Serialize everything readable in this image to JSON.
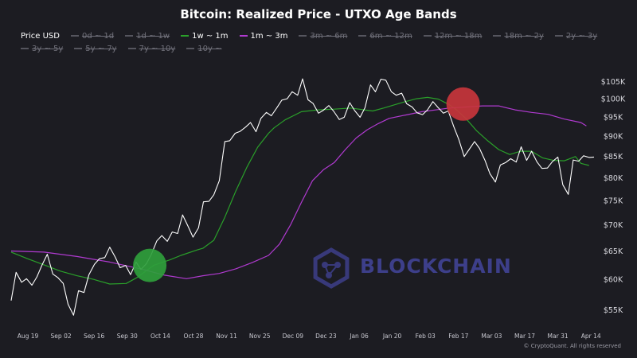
{
  "chart_data": {
    "type": "line",
    "title": "Bitcoin: Realized Price - UTXO Age Bands",
    "legend": [
      {
        "name": "Price USD",
        "color": "#ffffff",
        "visible": true
      },
      {
        "name": "0d ~ 1d",
        "color": "#7a7a7a",
        "visible": false
      },
      {
        "name": "1d ~ 1w",
        "color": "#7a7a7a",
        "visible": false
      },
      {
        "name": "1w ~ 1m",
        "color": "#2aa02a",
        "visible": true
      },
      {
        "name": "1m ~ 3m",
        "color": "#b03ad0",
        "visible": true
      },
      {
        "name": "3m ~ 6m",
        "color": "#7a7a7a",
        "visible": false
      },
      {
        "name": "6m ~ 12m",
        "color": "#7a7a7a",
        "visible": false
      },
      {
        "name": "12m ~ 18m",
        "color": "#7a7a7a",
        "visible": false
      },
      {
        "name": "18m ~ 2y",
        "color": "#7a7a7a",
        "visible": false
      },
      {
        "name": "2y ~ 3y",
        "color": "#7a7a7a",
        "visible": false
      },
      {
        "name": "3y ~ 5y",
        "color": "#7a7a7a",
        "visible": false
      },
      {
        "name": "5y ~ 7y",
        "color": "#7a7a7a",
        "visible": false
      },
      {
        "name": "7y ~ 10y",
        "color": "#7a7a7a",
        "visible": false
      },
      {
        "name": "10y ~",
        "color": "#7a7a7a",
        "visible": false
      }
    ],
    "x_ticks": [
      "Aug 19",
      "Sep 02",
      "Sep 16",
      "Sep 30",
      "Oct 14",
      "Oct 28",
      "Nov 11",
      "Nov 25",
      "Dec 09",
      "Dec 23",
      "Jan 06",
      "Jan 20",
      "Feb 03",
      "Feb 17",
      "Mar 03",
      "Mar 17",
      "Mar 31",
      "Apr 14"
    ],
    "y_ticks": [
      "$55K",
      "$60K",
      "$65K",
      "$70K",
      "$75K",
      "$80K",
      "$85K",
      "$90K",
      "$95K",
      "$100K",
      "$105K"
    ],
    "y_log_range": [
      53500,
      107500
    ],
    "series": [
      {
        "name": "Price USD",
        "color": "#ffffff",
        "values": [
          [
            0.0,
            56500
          ],
          [
            0.9,
            61200
          ],
          [
            1.9,
            59500
          ],
          [
            2.8,
            60100
          ],
          [
            3.8,
            59000
          ],
          [
            4.7,
            60400
          ],
          [
            5.7,
            62600
          ],
          [
            6.6,
            64400
          ],
          [
            7.6,
            60900
          ],
          [
            8.5,
            60300
          ],
          [
            9.5,
            59300
          ],
          [
            10.4,
            55900
          ],
          [
            11.4,
            54200
          ],
          [
            12.3,
            58100
          ],
          [
            13.3,
            57800
          ],
          [
            14.2,
            60800
          ],
          [
            15.2,
            62600
          ],
          [
            16.1,
            63600
          ],
          [
            17.1,
            63800
          ],
          [
            18.0,
            65700
          ],
          [
            19.0,
            63900
          ],
          [
            19.9,
            62000
          ],
          [
            20.9,
            62400
          ],
          [
            21.8,
            60800
          ],
          [
            22.8,
            63000
          ],
          [
            23.7,
            61700
          ],
          [
            24.7,
            62700
          ],
          [
            25.6,
            64400
          ],
          [
            26.6,
            66900
          ],
          [
            27.5,
            67900
          ],
          [
            28.5,
            66800
          ],
          [
            29.4,
            68600
          ],
          [
            30.4,
            68300
          ],
          [
            31.3,
            72000
          ],
          [
            32.3,
            69700
          ],
          [
            33.2,
            67600
          ],
          [
            34.2,
            69400
          ],
          [
            35.1,
            74700
          ],
          [
            36.1,
            74800
          ],
          [
            37.0,
            76200
          ],
          [
            38.0,
            79300
          ],
          [
            39.0,
            88600
          ],
          [
            39.9,
            88800
          ],
          [
            40.9,
            90700
          ],
          [
            41.8,
            91200
          ],
          [
            42.8,
            92300
          ],
          [
            43.7,
            93500
          ],
          [
            44.7,
            91100
          ],
          [
            45.6,
            94600
          ],
          [
            46.6,
            96200
          ],
          [
            47.5,
            95300
          ],
          [
            48.5,
            97500
          ],
          [
            49.4,
            99600
          ],
          [
            50.4,
            100000
          ],
          [
            51.3,
            102000
          ],
          [
            52.3,
            101000
          ],
          [
            53.2,
            105800
          ],
          [
            54.2,
            99700
          ],
          [
            55.1,
            98700
          ],
          [
            56.1,
            96000
          ],
          [
            57.0,
            96800
          ],
          [
            58.0,
            98100
          ],
          [
            58.9,
            96500
          ],
          [
            59.9,
            94300
          ],
          [
            60.8,
            94900
          ],
          [
            61.8,
            98900
          ],
          [
            62.7,
            96700
          ],
          [
            63.7,
            94900
          ],
          [
            64.6,
            97500
          ],
          [
            65.6,
            104000
          ],
          [
            66.5,
            102000
          ],
          [
            67.5,
            105700
          ],
          [
            68.4,
            105400
          ],
          [
            69.4,
            102000
          ],
          [
            70.3,
            101000
          ],
          [
            71.3,
            101600
          ],
          [
            72.2,
            98600
          ],
          [
            73.2,
            97700
          ],
          [
            74.1,
            96100
          ],
          [
            75.1,
            95600
          ],
          [
            76.0,
            96900
          ],
          [
            77.0,
            99200
          ],
          [
            77.9,
            97600
          ],
          [
            78.9,
            96000
          ],
          [
            79.8,
            96600
          ],
          [
            80.8,
            92400
          ],
          [
            81.7,
            89200
          ],
          [
            82.7,
            84900
          ],
          [
            83.6,
            86600
          ],
          [
            84.6,
            88600
          ],
          [
            85.5,
            86900
          ],
          [
            86.5,
            84000
          ],
          [
            87.4,
            80900
          ],
          [
            88.4,
            79000
          ],
          [
            89.3,
            82900
          ],
          [
            90.3,
            83500
          ],
          [
            91.2,
            84400
          ],
          [
            92.2,
            83600
          ],
          [
            93.1,
            87300
          ],
          [
            94.1,
            84000
          ],
          [
            95.0,
            86200
          ],
          [
            96.0,
            83600
          ],
          [
            96.9,
            82100
          ],
          [
            97.9,
            82200
          ],
          [
            98.8,
            83700
          ],
          [
            99.8,
            84800
          ],
          [
            100.7,
            78400
          ],
          [
            101.7,
            76300
          ],
          [
            102.6,
            84100
          ],
          [
            103.6,
            83800
          ],
          [
            104.5,
            85100
          ],
          [
            105.5,
            84700
          ],
          [
            106.4,
            84800
          ]
        ]
      },
      {
        "name": "1w ~ 1m",
        "color": "#2aa02a",
        "values": [
          [
            0.0,
            64800
          ],
          [
            3.0,
            63600
          ],
          [
            6.0,
            62500
          ],
          [
            9.0,
            61400
          ],
          [
            12.0,
            60600
          ],
          [
            15.0,
            60000
          ],
          [
            18.0,
            59200
          ],
          [
            21.0,
            59300
          ],
          [
            23.0,
            60300
          ],
          [
            26.0,
            62400
          ],
          [
            29.0,
            63400
          ],
          [
            31.0,
            64200
          ],
          [
            34.0,
            65200
          ],
          [
            35.0,
            65500
          ],
          [
            37.0,
            67000
          ],
          [
            39.0,
            71500
          ],
          [
            41.0,
            77000
          ],
          [
            43.0,
            82300
          ],
          [
            45.0,
            87200
          ],
          [
            47.0,
            90700
          ],
          [
            48.0,
            92100
          ],
          [
            50.0,
            94200
          ],
          [
            53.0,
            96400
          ],
          [
            56.0,
            96900
          ],
          [
            59.0,
            97100
          ],
          [
            62.0,
            97400
          ],
          [
            65.0,
            96800
          ],
          [
            66.0,
            96600
          ],
          [
            68.0,
            97400
          ],
          [
            70.0,
            98300
          ],
          [
            72.0,
            99200
          ],
          [
            74.0,
            100000
          ],
          [
            76.0,
            100400
          ],
          [
            78.0,
            99900
          ],
          [
            80.0,
            98300
          ],
          [
            81.0,
            97300
          ],
          [
            83.0,
            94600
          ],
          [
            85.0,
            91300
          ],
          [
            87.0,
            88800
          ],
          [
            89.0,
            86600
          ],
          [
            91.0,
            85400
          ],
          [
            93.0,
            86200
          ],
          [
            95.0,
            86200
          ],
          [
            97.0,
            84600
          ],
          [
            99.0,
            84000
          ],
          [
            101.0,
            83900
          ],
          [
            103.0,
            84900
          ],
          [
            104.0,
            83300
          ],
          [
            105.5,
            82800
          ]
        ]
      },
      {
        "name": "1m ~ 3m",
        "color": "#b03ad0",
        "values": [
          [
            0.0,
            65000
          ],
          [
            6.0,
            64800
          ],
          [
            12.0,
            64000
          ],
          [
            18.0,
            63000
          ],
          [
            24.0,
            61700
          ],
          [
            28.0,
            60700
          ],
          [
            32.0,
            60100
          ],
          [
            35.0,
            60600
          ],
          [
            38.0,
            61000
          ],
          [
            41.0,
            61800
          ],
          [
            44.0,
            62900
          ],
          [
            47.0,
            64200
          ],
          [
            49.0,
            66300
          ],
          [
            51.0,
            70000
          ],
          [
            53.0,
            74600
          ],
          [
            55.0,
            79300
          ],
          [
            57.0,
            81800
          ],
          [
            59.0,
            83500
          ],
          [
            61.0,
            86600
          ],
          [
            63.0,
            89500
          ],
          [
            65.0,
            91600
          ],
          [
            67.0,
            93200
          ],
          [
            69.0,
            94600
          ],
          [
            72.0,
            95500
          ],
          [
            75.0,
            96400
          ],
          [
            78.0,
            97000
          ],
          [
            80.0,
            97400
          ],
          [
            83.0,
            97700
          ],
          [
            86.0,
            98000
          ],
          [
            89.0,
            98000
          ],
          [
            92.0,
            96900
          ],
          [
            95.0,
            96200
          ],
          [
            98.0,
            95700
          ],
          [
            101.0,
            94400
          ],
          [
            104.0,
            93500
          ],
          [
            105.0,
            92600
          ]
        ]
      }
    ]
  },
  "annotations": [
    {
      "color": "#2f9e3c",
      "x": 25.3,
      "y": 62400
    },
    {
      "color": "#c7353c",
      "x": 82.5,
      "y": 98500
    }
  ],
  "watermark": {
    "text": "BLOCKCHAIN",
    "icon": "blockchain-logo-icon"
  },
  "footer": "© CryptoQuant. All rights reserved"
}
